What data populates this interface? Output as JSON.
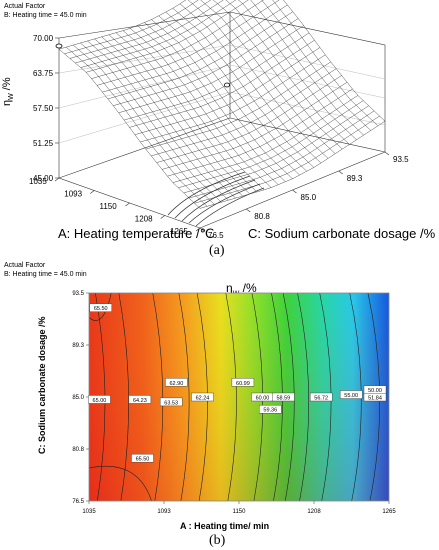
{
  "figure_a": {
    "header": [
      "Actual Factor",
      "B: Heating time = 45.0 min"
    ],
    "caption": "(a)",
    "chart_data": {
      "type": "surface",
      "zlabel": "η_W /%",
      "xlabel": "A: Heating temperature /℃",
      "ylabel": "C: Sodium carbonate dosage /%",
      "x_ticks": [
        "1035",
        "1093",
        "1150",
        "1208",
        "1265"
      ],
      "y_ticks": [
        "76.5",
        "80.8",
        "85.0",
        "89.3",
        "93.5"
      ],
      "z_ticks": [
        "45.00",
        "51.25",
        "57.50",
        "63.75",
        "70.00"
      ],
      "xlim": [
        1035,
        1265
      ],
      "ylim": [
        76.5,
        93.5
      ],
      "zlim": [
        45,
        70
      ],
      "grid": [
        [
          68,
          67.5,
          67,
          66.5,
          66.5,
          67,
          68,
          69,
          70
        ],
        [
          65.5,
          65,
          64.5,
          64,
          64,
          64.5,
          65.5,
          66.5,
          67.5
        ],
        [
          61,
          60.5,
          60,
          59.5,
          59.5,
          60,
          61,
          62,
          63
        ],
        [
          56,
          55.5,
          55,
          54.5,
          54.5,
          55,
          56,
          57,
          58
        ],
        [
          51.5,
          51,
          50.5,
          50,
          50,
          50.5,
          51.5,
          52.5,
          53.5
        ],
        [
          48.5,
          48,
          47.5,
          47,
          47,
          47.5,
          48.5,
          49.5,
          50.5
        ]
      ]
    }
  },
  "figure_b": {
    "header": [
      "Actual Factor",
      "B: Heating time = 45.0 min"
    ],
    "caption": "(b)",
    "chart_data": {
      "type": "contour",
      "title": "η_W /%",
      "xlabel": "A : Heating time/ min",
      "ylabel": "C: Sodium carbonate dosage /%",
      "x_ticks": [
        "1035",
        "1093",
        "1150",
        "1208",
        "1265"
      ],
      "y_ticks": [
        "76.5",
        "80.8",
        "85.0",
        "89.3",
        "93.5"
      ],
      "xlim": [
        1035,
        1265
      ],
      "ylim": [
        76.5,
        93.5
      ],
      "contour_labels": [
        {
          "text": "65.50",
          "x": 1044,
          "y": 92.3
        },
        {
          "text": "65.00",
          "x": 1043,
          "y": 84.8
        },
        {
          "text": "64.23",
          "x": 1074,
          "y": 84.8
        },
        {
          "text": "63.53",
          "x": 1098,
          "y": 84.6
        },
        {
          "text": "62.90",
          "x": 1102,
          "y": 86.2
        },
        {
          "text": "62.24",
          "x": 1122,
          "y": 85.0
        },
        {
          "text": "60.99",
          "x": 1153,
          "y": 86.2
        },
        {
          "text": "60.00",
          "x": 1168,
          "y": 85.0
        },
        {
          "text": "59.36",
          "x": 1174,
          "y": 84.0
        },
        {
          "text": "58.59",
          "x": 1184,
          "y": 85.0
        },
        {
          "text": "56.72",
          "x": 1213,
          "y": 85.0
        },
        {
          "text": "55.00",
          "x": 1236,
          "y": 85.2
        },
        {
          "text": "51.84",
          "x": 1282,
          "y": 85.0
        },
        {
          "text": "50.00",
          "x": 1314,
          "y": 85.6
        },
        {
          "text": "65.50",
          "x": 1076,
          "y": 80.0
        }
      ],
      "colors": {
        "high": "#e8391d",
        "mid": "#3cd33c",
        "low": "#1060e0"
      }
    }
  }
}
